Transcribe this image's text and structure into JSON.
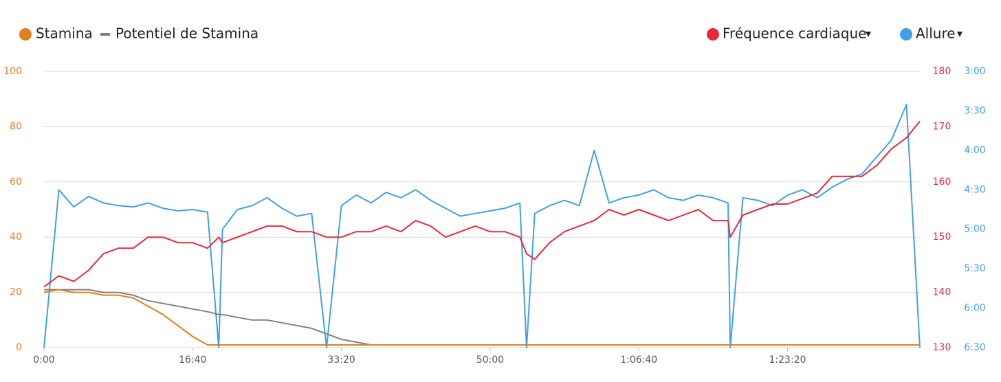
{
  "chart_data": {
    "type": "line",
    "x": [
      0,
      100,
      200,
      300,
      400,
      500,
      600,
      700,
      800,
      900,
      1000,
      1100,
      1175,
      1200,
      1300,
      1400,
      1500,
      1600,
      1700,
      1800,
      1900,
      2000,
      2100,
      2200,
      2300,
      2400,
      2500,
      2600,
      2700,
      2800,
      2900,
      3000,
      3100,
      3200,
      3245,
      3300,
      3400,
      3500,
      3600,
      3700,
      3800,
      3900,
      4000,
      4100,
      4200,
      4300,
      4400,
      4500,
      4600,
      4615,
      4700,
      4800,
      4900,
      5000,
      5100,
      5200,
      5300,
      5400,
      5500,
      5600,
      5700,
      5800,
      5890
    ],
    "xlim": [
      0,
      5890
    ],
    "xticks": [
      {
        "value": 0,
        "label": "0:00"
      },
      {
        "value": 1000,
        "label": "16:40"
      },
      {
        "value": 2000,
        "label": "33:20"
      },
      {
        "value": 3000,
        "label": "50:00"
      },
      {
        "value": 4000,
        "label": "1:06:40"
      },
      {
        "value": 5000,
        "label": "1:23:20"
      }
    ],
    "ylim": [
      0,
      100
    ],
    "yticks": [
      0,
      20,
      40,
      60,
      80,
      100
    ],
    "y2lim": [
      130,
      180
    ],
    "y2ticks": [
      130,
      140,
      150,
      160,
      170,
      180
    ],
    "y3lim": [
      390,
      180
    ],
    "y3ticks": [
      {
        "value": 390,
        "label": "6:30"
      },
      {
        "value": 360,
        "label": "6:00"
      },
      {
        "value": 330,
        "label": "5:30"
      },
      {
        "value": 300,
        "label": "5:00"
      },
      {
        "value": 270,
        "label": "4:30"
      },
      {
        "value": 240,
        "label": "4:00"
      },
      {
        "value": 210,
        "label": "3:30"
      },
      {
        "value": 180,
        "label": "3:00"
      }
    ],
    "grid": true,
    "series": [
      {
        "name": "Stamina",
        "color": "#e0801e",
        "axis": "y",
        "marker": "circle",
        "values": [
          20,
          21,
          20,
          20,
          19,
          19,
          18,
          15,
          12,
          8,
          4,
          1,
          1,
          1,
          1,
          1,
          1,
          1,
          1,
          1,
          1,
          1,
          1,
          1,
          1,
          1,
          1,
          1,
          1,
          1,
          1,
          1,
          1,
          1,
          1,
          1,
          1,
          1,
          1,
          1,
          1,
          1,
          1,
          1,
          1,
          1,
          1,
          1,
          1,
          1,
          1,
          1,
          1,
          1,
          1,
          1,
          1,
          1,
          1,
          1,
          1,
          1,
          1
        ]
      },
      {
        "name": "Potentiel de Stamina",
        "color": "#808080",
        "axis": "y",
        "marker": "dash",
        "values": [
          21,
          21,
          21,
          21,
          20,
          20,
          19,
          17,
          16,
          15,
          14,
          13,
          12,
          12,
          11,
          10,
          10,
          9,
          8,
          7,
          5,
          3,
          2,
          1,
          1,
          1,
          1,
          1,
          1,
          1,
          1,
          1,
          1,
          1,
          1,
          1,
          1,
          1,
          1,
          1,
          1,
          1,
          1,
          1,
          1,
          1,
          1,
          1,
          1,
          1,
          1,
          1,
          1,
          1,
          1,
          1,
          1,
          1,
          1,
          1,
          1,
          1,
          1
        ]
      },
      {
        "name": "Fréquence cardiaque",
        "color": "#e8293b",
        "axis": "y2",
        "marker": "circle",
        "values": [
          141,
          143,
          142,
          144,
          147,
          148,
          148,
          150,
          150,
          149,
          149,
          148,
          150,
          149,
          150,
          151,
          152,
          152,
          151,
          151,
          150,
          150,
          151,
          151,
          152,
          151,
          153,
          152,
          150,
          151,
          152,
          151,
          151,
          150,
          147,
          146,
          149,
          151,
          152,
          153,
          155,
          154,
          155,
          154,
          153,
          154,
          155,
          153,
          153,
          150,
          154,
          155,
          156,
          156,
          157,
          158,
          161,
          161,
          161,
          163,
          166,
          168,
          171
        ]
      },
      {
        "name": "Allure",
        "color": "#3fa0e6",
        "axis": "y3",
        "marker": "circle",
        "values": [
          390,
          270,
          283,
          275,
          280,
          282,
          283,
          280,
          284,
          286,
          285,
          287,
          390,
          300,
          285,
          282,
          276,
          284,
          290,
          288,
          390,
          282,
          274,
          280,
          272,
          276,
          270,
          278,
          284,
          290,
          288,
          286,
          284,
          280,
          390,
          288,
          282,
          278,
          282,
          240,
          280,
          276,
          274,
          270,
          276,
          278,
          274,
          276,
          280,
          390,
          276,
          278,
          282,
          274,
          270,
          276,
          268,
          262,
          258,
          245,
          232,
          205,
          390
        ]
      }
    ]
  }
}
